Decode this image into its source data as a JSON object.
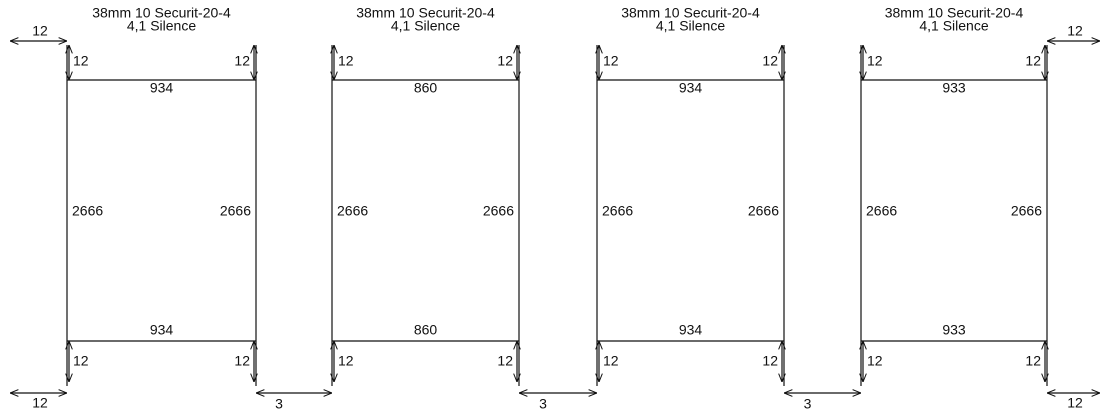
{
  "panels": [
    {
      "title": "38mm 10 Securit-20-4",
      "subtitle": "4,1 Silence",
      "top_width": 934,
      "bottom_width": 934,
      "left_height": 2666,
      "right_height": 2666,
      "top_left": 12,
      "top_right": 12,
      "bottom_left": 12,
      "bottom_right": 12
    },
    {
      "title": "38mm 10 Securit-20-4",
      "subtitle": "4,1 Silence",
      "top_width": 860,
      "bottom_width": 860,
      "left_height": 2666,
      "right_height": 2666,
      "top_left": 12,
      "top_right": 12,
      "bottom_left": 12,
      "bottom_right": 12
    },
    {
      "title": "38mm 10 Securit-20-4",
      "subtitle": "4,1 Silence",
      "top_width": 934,
      "bottom_width": 934,
      "left_height": 2666,
      "right_height": 2666,
      "top_left": 12,
      "top_right": 12,
      "bottom_left": 12,
      "bottom_right": 12
    },
    {
      "title": "38mm 10 Securit-20-4",
      "subtitle": "4,1 Silence",
      "top_width": 933,
      "bottom_width": 933,
      "left_height": 2666,
      "right_height": 2666,
      "top_left": 12,
      "top_right": 12,
      "bottom_left": 12,
      "bottom_right": 12
    }
  ],
  "outer": {
    "left_top": 12,
    "left_bottom": 12,
    "right_top": 12,
    "right_bottom": 12
  },
  "gaps": [
    3,
    3,
    3
  ]
}
